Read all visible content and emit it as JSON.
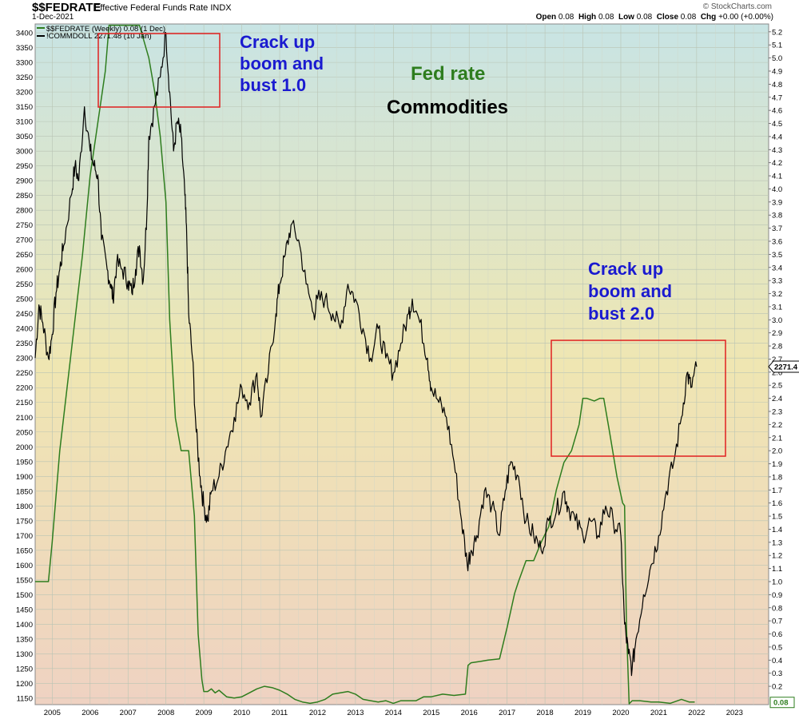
{
  "header": {
    "symbol": "$$FEDRATE",
    "description": "Effective Federal Funds Rate  INDX",
    "date": "1-Dec-2021",
    "open_label": "Open",
    "open": "0.08",
    "high_label": "High",
    "high": "0.08",
    "low_label": "Low",
    "low": "0.08",
    "close_label": "Close",
    "close": "0.08",
    "chg_label": "Chg",
    "chg": "+0.00 (+0.00%)",
    "credit": "© StockCharts.com"
  },
  "colors": {
    "fedrate": "#2e7d1e",
    "commodities": "#000000",
    "annotation_blue": "#1a1ad0",
    "box_red": "#e02020",
    "bg_top": "#c8e4e4",
    "bg_mid": "#efe6b2",
    "bg_bottom": "#efd2c2"
  },
  "legend": {
    "fedrate": "$$FEDRATE (Weekly) 0.08 (1 Dec)",
    "commodities": "!COMMDOLL 2271.48 (10 Jan)"
  },
  "annotations": {
    "crack1_lines": [
      "Crack up",
      "boom and",
      "bust 1.0"
    ],
    "crack2_lines": [
      "Crack up",
      "boom and",
      "bust 2.0"
    ],
    "fed_rate_label": "Fed rate",
    "commodities_label": "Commodities"
  },
  "last_values": {
    "commodities": "2271.4",
    "fedrate": "0.08"
  },
  "chart_data": {
    "type": "line",
    "x_ticks": [
      "2005",
      "2006",
      "2007",
      "2008",
      "2009",
      "2010",
      "2011",
      "2012",
      "2013",
      "2014",
      "2015",
      "2016",
      "2017",
      "2018",
      "2019",
      "2020",
      "2021",
      "2022",
      "2023"
    ],
    "left_axis": {
      "ticks": [
        1150,
        1200,
        1250,
        1300,
        1350,
        1400,
        1450,
        1500,
        1550,
        1600,
        1650,
        1700,
        1750,
        1800,
        1850,
        1900,
        1950,
        2000,
        2050,
        2100,
        2150,
        2200,
        2250,
        2300,
        2350,
        2400,
        2450,
        2500,
        2550,
        2600,
        2650,
        2700,
        2750,
        2800,
        2850,
        2900,
        2950,
        3000,
        3050,
        3100,
        3150,
        3200,
        3250,
        3300,
        3350,
        3400
      ],
      "range": [
        1128,
        3430
      ]
    },
    "right_axis": {
      "ticks": [
        0.2,
        0.3,
        0.4,
        0.5,
        0.6,
        0.7,
        0.8,
        0.9,
        1.0,
        1.1,
        1.2,
        1.3,
        1.4,
        1.5,
        1.6,
        1.7,
        1.8,
        1.9,
        2.0,
        2.1,
        2.2,
        2.3,
        2.4,
        2.5,
        2.6,
        2.7,
        2.8,
        2.9,
        3.0,
        3.1,
        3.2,
        3.3,
        3.4,
        3.5,
        3.6,
        3.7,
        3.8,
        3.9,
        4.0,
        4.1,
        4.2,
        4.3,
        4.4,
        4.5,
        4.6,
        4.7,
        4.8,
        4.9,
        5.0,
        5.1,
        5.2
      ],
      "range": [
        0.06,
        5.26
      ]
    },
    "x_range": [
      2004.55,
      2023.9
    ],
    "grid": true,
    "series": [
      {
        "name": "$$FEDRATE (Weekly) 0.08 (1 Dec)",
        "axis": "right",
        "x": [
          2004.55,
          2004.9,
          2005.0,
          2005.2,
          2005.4,
          2005.6,
          2005.8,
          2006.0,
          2006.2,
          2006.4,
          2006.5,
          2006.7,
          2007.0,
          2007.3,
          2007.55,
          2007.7,
          2007.85,
          2008.0,
          2008.1,
          2008.25,
          2008.4,
          2008.6,
          2008.75,
          2008.85,
          2008.95,
          2009.0,
          2009.1,
          2009.2,
          2009.3,
          2009.4,
          2009.6,
          2009.8,
          2010.0,
          2010.2,
          2010.4,
          2010.6,
          2010.8,
          2011.0,
          2011.2,
          2011.4,
          2011.6,
          2011.8,
          2012.0,
          2012.2,
          2012.4,
          2012.6,
          2012.8,
          2013.0,
          2013.2,
          2013.4,
          2013.6,
          2013.8,
          2014.0,
          2014.2,
          2014.4,
          2014.6,
          2014.8,
          2015.0,
          2015.3,
          2015.6,
          2015.9,
          2015.97,
          2016.05,
          2016.3,
          2016.5,
          2016.8,
          2017.0,
          2017.2,
          2017.3,
          2017.5,
          2017.7,
          2017.9,
          2018.1,
          2018.3,
          2018.5,
          2018.7,
          2018.9,
          2019.0,
          2019.1,
          2019.3,
          2019.45,
          2019.55,
          2019.7,
          2019.9,
          2020.05,
          2020.1,
          2020.15,
          2020.22,
          2020.3,
          2020.5,
          2020.8,
          2021.0,
          2021.3,
          2021.6,
          2021.8,
          2021.95
        ],
        "values": [
          1.0,
          1.0,
          1.3,
          2.0,
          2.5,
          3.0,
          3.5,
          4.1,
          4.5,
          4.9,
          5.25,
          5.25,
          5.25,
          5.25,
          5.0,
          4.75,
          4.4,
          3.9,
          3.0,
          2.25,
          2.0,
          2.0,
          1.5,
          0.6,
          0.25,
          0.16,
          0.16,
          0.18,
          0.15,
          0.17,
          0.12,
          0.11,
          0.12,
          0.15,
          0.18,
          0.2,
          0.19,
          0.17,
          0.14,
          0.1,
          0.08,
          0.07,
          0.08,
          0.1,
          0.14,
          0.15,
          0.16,
          0.14,
          0.1,
          0.09,
          0.08,
          0.09,
          0.07,
          0.09,
          0.09,
          0.09,
          0.12,
          0.12,
          0.14,
          0.13,
          0.14,
          0.36,
          0.38,
          0.39,
          0.4,
          0.41,
          0.65,
          0.91,
          1.0,
          1.16,
          1.16,
          1.3,
          1.42,
          1.7,
          1.91,
          2.0,
          2.2,
          2.4,
          2.4,
          2.38,
          2.4,
          2.4,
          2.15,
          1.8,
          1.6,
          1.58,
          0.65,
          0.05,
          0.09,
          0.09,
          0.08,
          0.08,
          0.07,
          0.1,
          0.08,
          0.08
        ]
      },
      {
        "name": "!COMMDOLL 2271.48 (10 Jan)",
        "axis": "left",
        "x": [
          2004.55,
          2004.65,
          2004.75,
          2004.9,
          2005.0,
          2005.1,
          2005.2,
          2005.3,
          2005.5,
          2005.6,
          2005.7,
          2005.85,
          2006.0,
          2006.1,
          2006.2,
          2006.3,
          2006.45,
          2006.55,
          2006.6,
          2006.7,
          2006.85,
          2007.0,
          2007.1,
          2007.2,
          2007.3,
          2007.4,
          2007.5,
          2007.55,
          2007.7,
          2007.85,
          2008.0,
          2008.1,
          2008.2,
          2008.3,
          2008.4,
          2008.5,
          2008.55,
          2008.6,
          2008.7,
          2008.8,
          2008.9,
          2009.0,
          2009.1,
          2009.2,
          2009.4,
          2009.6,
          2009.8,
          2010.0,
          2010.2,
          2010.4,
          2010.5,
          2010.7,
          2010.9,
          2011.0,
          2011.15,
          2011.3,
          2011.5,
          2011.7,
          2011.9,
          2012.0,
          2012.2,
          2012.4,
          2012.6,
          2012.8,
          2013.0,
          2013.2,
          2013.4,
          2013.6,
          2013.8,
          2014.0,
          2014.2,
          2014.4,
          2014.5,
          2014.7,
          2014.9,
          2015.0,
          2015.2,
          2015.4,
          2015.6,
          2015.8,
          2015.95,
          2016.05,
          2016.2,
          2016.4,
          2016.6,
          2016.8,
          2016.95,
          2017.1,
          2017.3,
          2017.5,
          2017.7,
          2017.9,
          2018.1,
          2018.3,
          2018.5,
          2018.6,
          2018.8,
          2019.0,
          2019.2,
          2019.4,
          2019.6,
          2019.8,
          2020.0,
          2020.1,
          2020.2,
          2020.3,
          2020.4,
          2020.6,
          2020.8,
          2021.0,
          2021.2,
          2021.4,
          2021.6,
          2021.75,
          2021.85,
          2022.0
        ],
        "values": [
          2300,
          2480,
          2420,
          2300,
          2380,
          2520,
          2600,
          2680,
          2850,
          2950,
          2900,
          3150,
          3000,
          2950,
          2920,
          2700,
          2600,
          2550,
          2500,
          2620,
          2600,
          2560,
          2520,
          2600,
          2680,
          2560,
          2800,
          3050,
          3150,
          3250,
          3400,
          3200,
          3000,
          3100,
          3050,
          2850,
          2700,
          2450,
          2300,
          2050,
          1900,
          1800,
          1750,
          1850,
          1900,
          2000,
          2100,
          2200,
          2150,
          2250,
          2100,
          2250,
          2450,
          2550,
          2650,
          2750,
          2700,
          2550,
          2450,
          2500,
          2500,
          2450,
          2400,
          2550,
          2500,
          2400,
          2300,
          2400,
          2300,
          2250,
          2350,
          2450,
          2500,
          2420,
          2300,
          2200,
          2150,
          2100,
          1950,
          1750,
          1600,
          1650,
          1700,
          1850,
          1800,
          1700,
          1850,
          1950,
          1900,
          1750,
          1700,
          1650,
          1750,
          1780,
          1850,
          1800,
          1750,
          1700,
          1750,
          1700,
          1800,
          1750,
          1700,
          1400,
          1300,
          1250,
          1350,
          1500,
          1600,
          1700,
          1850,
          1950,
          2100,
          2250,
          2200,
          2271
        ]
      }
    ]
  }
}
